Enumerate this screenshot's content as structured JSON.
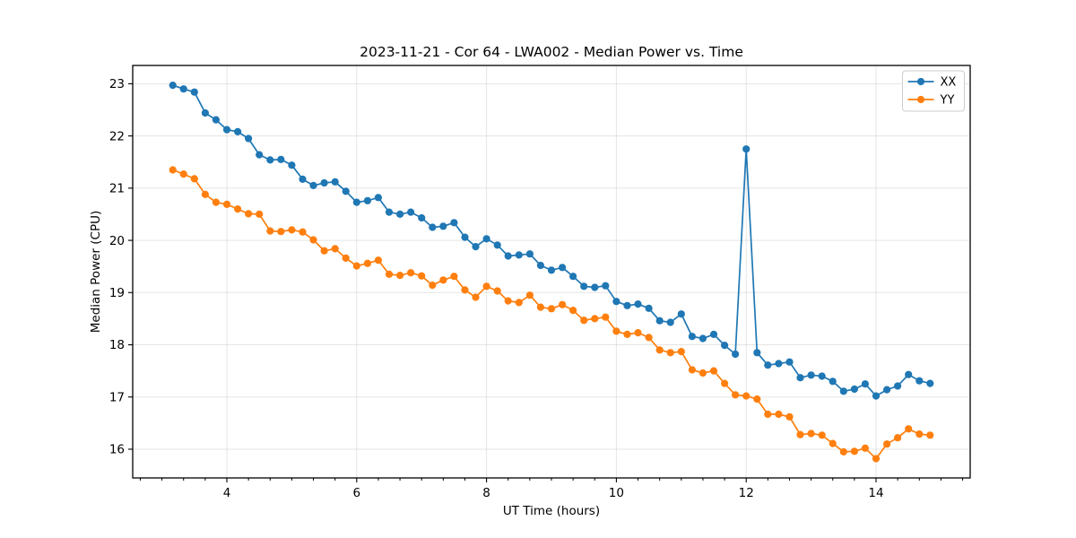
{
  "figure": {
    "background": "#ffffff"
  },
  "chart_data": {
    "type": "line",
    "title": "2023-11-21 - Cor 64 - LWA002 - Median Power vs. Time",
    "xlabel": "UT Time (hours)",
    "ylabel": "Median Power (CPU)",
    "xlim": [
      2.55,
      15.45
    ],
    "ylim": [
      15.45,
      23.35
    ],
    "xticks": [
      4,
      6,
      8,
      10,
      12,
      14
    ],
    "yticks": [
      16,
      17,
      18,
      19,
      20,
      21,
      22,
      23
    ],
    "x_minor_tick_step": 0.3333,
    "grid": true,
    "legend_position": "upper right",
    "x": [
      3.167,
      3.333,
      3.5,
      3.667,
      3.833,
      4,
      4.167,
      4.333,
      4.5,
      4.667,
      4.833,
      5,
      5.167,
      5.333,
      5.5,
      5.667,
      5.833,
      6,
      6.167,
      6.333,
      6.5,
      6.667,
      6.833,
      7,
      7.167,
      7.333,
      7.5,
      7.667,
      7.833,
      8,
      8.167,
      8.333,
      8.5,
      8.667,
      8.833,
      9,
      9.167,
      9.333,
      9.5,
      9.667,
      9.833,
      10,
      10.167,
      10.333,
      10.5,
      10.667,
      10.833,
      11,
      11.167,
      11.333,
      11.5,
      11.667,
      11.833,
      12,
      12.167,
      12.333,
      12.5,
      12.667,
      12.833,
      13,
      13.167,
      13.333,
      13.5,
      13.667,
      13.833,
      14,
      14.167,
      14.333,
      14.5,
      14.667,
      14.833
    ],
    "series": [
      {
        "name": "XX",
        "color": "#1f77b4",
        "values": [
          22.97,
          22.9,
          22.84,
          22.44,
          22.31,
          22.12,
          22.08,
          21.95,
          21.64,
          21.54,
          21.55,
          21.44,
          21.17,
          21.05,
          21.1,
          21.12,
          20.94,
          20.73,
          20.76,
          20.82,
          20.54,
          20.5,
          20.54,
          20.43,
          20.25,
          20.27,
          20.34,
          20.06,
          19.88,
          20.03,
          19.91,
          19.7,
          19.72,
          19.74,
          19.52,
          19.43,
          19.48,
          19.31,
          19.12,
          19.1,
          19.13,
          18.83,
          18.75,
          18.78,
          18.7,
          18.46,
          18.43,
          18.59,
          18.16,
          18.12,
          18.2,
          17.99,
          17.82,
          21.75,
          17.85,
          17.61,
          17.64,
          17.67,
          17.37,
          17.42,
          17.4,
          17.3,
          17.11,
          17.15,
          17.25,
          17.02,
          17.14,
          17.21,
          17.43,
          17.31,
          17.26
        ]
      },
      {
        "name": "YY",
        "color": "#ff7f0e",
        "values": [
          21.35,
          21.27,
          21.18,
          20.88,
          20.73,
          20.69,
          20.6,
          20.51,
          20.5,
          20.18,
          20.17,
          20.2,
          20.16,
          20.01,
          19.8,
          19.84,
          19.66,
          19.51,
          19.56,
          19.62,
          19.35,
          19.33,
          19.38,
          19.32,
          19.14,
          19.24,
          19.31,
          19.05,
          18.91,
          19.12,
          19.03,
          18.84,
          18.81,
          18.95,
          18.72,
          18.69,
          18.77,
          18.66,
          18.47,
          18.5,
          18.53,
          18.26,
          18.2,
          18.23,
          18.14,
          17.9,
          17.85,
          17.87,
          17.52,
          17.46,
          17.5,
          17.26,
          17.04,
          17.02,
          16.96,
          16.67,
          16.67,
          16.62,
          16.28,
          16.3,
          16.27,
          16.11,
          15.95,
          15.96,
          16.02,
          15.82,
          16.1,
          16.22,
          16.39,
          16.29,
          16.27
        ]
      }
    ],
    "legend_entries": [
      "XX",
      "YY"
    ]
  }
}
